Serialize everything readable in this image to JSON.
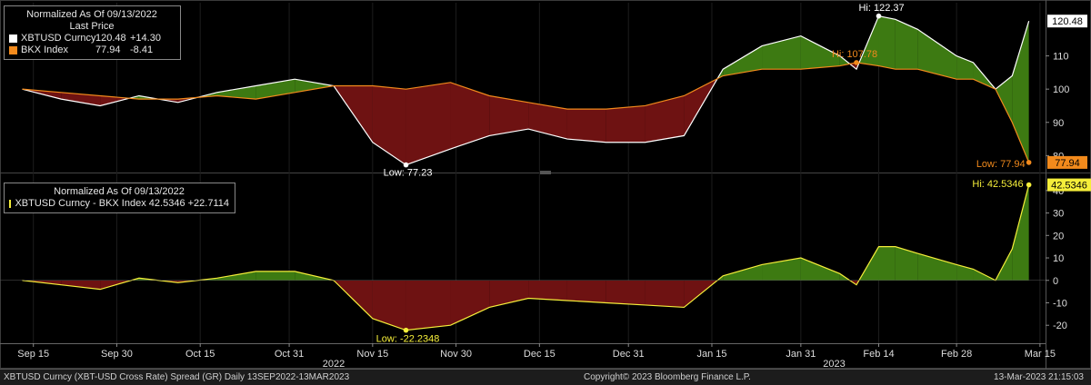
{
  "chart_data": [
    {
      "type": "area",
      "panel": "top",
      "legend": {
        "header": "Normalized As Of 09/13/2022",
        "subheader": "Last Price",
        "entries": [
          {
            "name": "XBTUSD Curncy",
            "value": "120.48",
            "change": "+14.30",
            "color": "#ffffff"
          },
          {
            "name": "BKX Index",
            "value": "77.94",
            "change": "-8.41",
            "color": "#f28a1c"
          }
        ]
      },
      "x": [
        "2022-09-13",
        "2022-09-20",
        "2022-09-27",
        "2022-10-04",
        "2022-10-11",
        "2022-10-18",
        "2022-10-25",
        "2022-11-01",
        "2022-11-08",
        "2022-11-15",
        "2022-11-21",
        "2022-11-29",
        "2022-12-06",
        "2022-12-13",
        "2022-12-20",
        "2022-12-27",
        "2023-01-03",
        "2023-01-10",
        "2023-01-17",
        "2023-01-24",
        "2023-01-31",
        "2023-02-07",
        "2023-02-10",
        "2023-02-14",
        "2023-02-17",
        "2023-02-21",
        "2023-02-28",
        "2023-03-03",
        "2023-03-07",
        "2023-03-10",
        "2023-03-13"
      ],
      "series": [
        {
          "name": "XBTUSD Curncy",
          "values": [
            100,
            97,
            95,
            98,
            96,
            99,
            101,
            103,
            101,
            84,
            77.2,
            82,
            86,
            88,
            85,
            84,
            84,
            86,
            106,
            113,
            116,
            110,
            106,
            122,
            121,
            118,
            110,
            108,
            100,
            104,
            120.48
          ]
        },
        {
          "name": "BKX Index",
          "values": [
            100,
            99,
            98,
            97,
            97,
            98,
            97,
            99,
            101,
            101,
            100,
            102,
            98,
            96,
            94,
            94,
            95,
            98,
            104,
            106,
            106,
            107,
            108,
            107,
            106,
            106,
            103,
            103,
            100,
            90,
            77.94
          ]
        }
      ],
      "ylim": [
        76,
        126
      ],
      "yticks": [
        80,
        90,
        100,
        110
      ],
      "annotations": {
        "hi1": "Hi: 122.37",
        "hi2": "Hi: 107.78",
        "low1": "Low: 77.23",
        "low2": "Low: 77.94",
        "last1": "120.48",
        "last2": "77.94"
      }
    },
    {
      "type": "area",
      "panel": "bottom",
      "legend": {
        "header": "Normalized As Of 09/13/2022",
        "entries": [
          {
            "name": "XBTUSD Curncy - BKX Index",
            "value": "42.5346",
            "change": "+22.7114",
            "color": "#f5ee3a"
          }
        ]
      },
      "x": [
        "2022-09-13",
        "2022-09-20",
        "2022-09-27",
        "2022-10-04",
        "2022-10-11",
        "2022-10-18",
        "2022-10-25",
        "2022-11-01",
        "2022-11-08",
        "2022-11-15",
        "2022-11-21",
        "2022-11-29",
        "2022-12-06",
        "2022-12-13",
        "2022-12-20",
        "2022-12-27",
        "2023-01-03",
        "2023-01-10",
        "2023-01-17",
        "2023-01-24",
        "2023-01-31",
        "2023-02-07",
        "2023-02-10",
        "2023-02-14",
        "2023-02-17",
        "2023-02-21",
        "2023-02-28",
        "2023-03-03",
        "2023-03-07",
        "2023-03-10",
        "2023-03-13"
      ],
      "series": [
        {
          "name": "XBTUSD Curncy - BKX Index",
          "values": [
            0,
            -2,
            -4,
            1,
            -1,
            1,
            4,
            4,
            0,
            -17,
            -22.2,
            -20,
            -12,
            -8,
            -9,
            -10,
            -11,
            -12,
            2,
            7,
            10,
            3,
            -2,
            15,
            15,
            12,
            7,
            5,
            0,
            14,
            42.53
          ]
        }
      ],
      "ylim": [
        -28,
        46
      ],
      "yticks": [
        -20,
        -10,
        0,
        10,
        20,
        30,
        40
      ],
      "annotations": {
        "hi": "Hi: 42.5346",
        "low": "Low: -22.2348",
        "last": "42.5346"
      }
    }
  ],
  "x_axis": {
    "ticks": [
      {
        "label": "Sep 15",
        "date": "2022-09-15"
      },
      {
        "label": "Sep 30",
        "date": "2022-09-30"
      },
      {
        "label": "Oct 15",
        "date": "2022-10-15"
      },
      {
        "label": "Oct 31",
        "date": "2022-10-31"
      },
      {
        "label": "Nov 15",
        "date": "2022-11-15"
      },
      {
        "label": "Nov 30",
        "date": "2022-11-30"
      },
      {
        "label": "Dec 15",
        "date": "2022-12-15"
      },
      {
        "label": "Dec 31",
        "date": "2022-12-31"
      },
      {
        "label": "Jan 15",
        "date": "2023-01-15"
      },
      {
        "label": "Jan 31",
        "date": "2023-01-31"
      },
      {
        "label": "Feb 14",
        "date": "2023-02-14"
      },
      {
        "label": "Feb 28",
        "date": "2023-02-28"
      },
      {
        "label": "Mar 15",
        "date": "2023-03-15"
      }
    ],
    "years": [
      {
        "label": "2022",
        "date": "2022-11-08"
      },
      {
        "label": "2023",
        "date": "2023-02-06"
      }
    ]
  },
  "colors": {
    "above": "#3d7a12",
    "below": "#6e1212",
    "bkx": "#f28a1c",
    "spread": "#f5ee3a",
    "line": "#ffffff"
  },
  "footer": {
    "left": "XBTUSD Curncy (XBT-USD Cross Rate) Spread (GR)  Daily 13SEP2022-13MAR2023",
    "center": "Copyright© 2023 Bloomberg Finance L.P.",
    "right": "13-Mar-2023 21:15:03"
  }
}
